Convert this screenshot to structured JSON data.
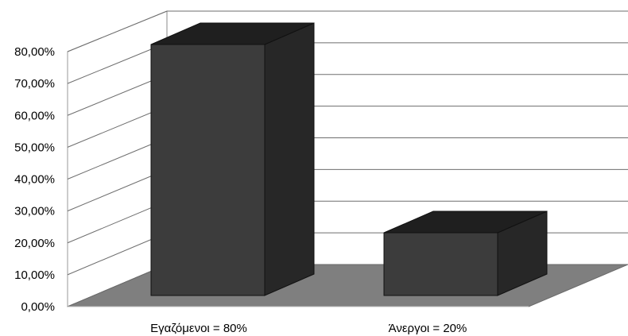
{
  "chart_data": {
    "type": "bar",
    "style": "3d-column",
    "categories": [
      "Εγαζόμενοι = 80%",
      "Άνεργοι = 20%"
    ],
    "values": [
      80,
      20
    ],
    "unit": "%",
    "ylim": [
      0,
      80
    ],
    "yticks": [
      "0,00%",
      "10,00%",
      "20,00%",
      "30,00%",
      "40,00%",
      "50,00%",
      "60,00%",
      "70,00%",
      "80,00%"
    ],
    "grid": true,
    "legend": "none",
    "colors": {
      "bar_front": "#3c3c3c",
      "bar_side": "#272727",
      "bar_top": "#1f1f1f",
      "floor": "#7f7f7f",
      "gridline": "#6e6e6e",
      "wall": "#ffffff"
    }
  }
}
